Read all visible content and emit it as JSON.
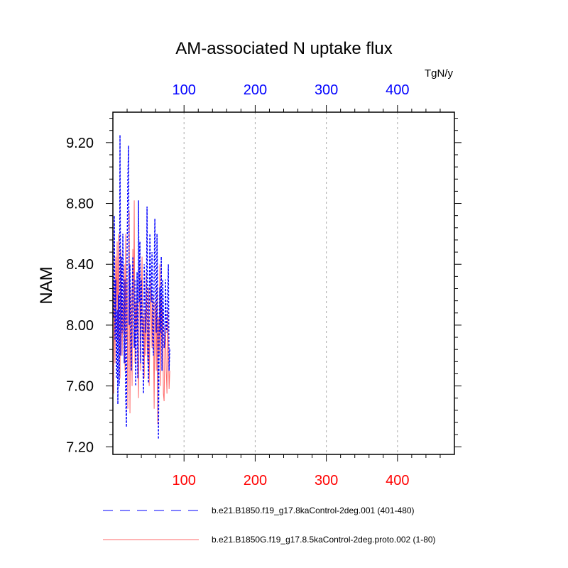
{
  "chart_data": {
    "type": "line",
    "title": "AM-associated N uptake flux",
    "ylabel": "NAM",
    "units": "TgN/y",
    "xlim": [
      0,
      480
    ],
    "ylim": [
      7.15,
      9.4
    ],
    "yticks": [
      7.2,
      7.6,
      8.0,
      8.4,
      8.8,
      9.2
    ],
    "ytick_labels": [
      "7.20",
      "7.60",
      "8.00",
      "8.40",
      "8.80",
      "9.20"
    ],
    "xticks_top": [
      100,
      200,
      300,
      400
    ],
    "xtick_labels_top": [
      "100",
      "200",
      "300",
      "400"
    ],
    "xticks_bottom": [
      100,
      200,
      300,
      400
    ],
    "xtick_labels_bottom": [
      "100",
      "200",
      "300",
      "400"
    ],
    "top_axis_color": "#0000ff",
    "bottom_axis_color": "#ff0000",
    "grid": "vertical dashed at x ticks",
    "legend_position": "bottom",
    "series": [
      {
        "name": "b.e21.B1850.f19_g17.8kaControl-2deg.001 (401-480)",
        "color": "#0000ff",
        "style": "dashed",
        "x": [
          1,
          2,
          3,
          4,
          5,
          6,
          7,
          8,
          9,
          10,
          11,
          12,
          13,
          14,
          15,
          16,
          17,
          18,
          19,
          20,
          21,
          22,
          23,
          24,
          25,
          26,
          27,
          28,
          29,
          30,
          31,
          32,
          33,
          34,
          35,
          36,
          37,
          38,
          39,
          40,
          41,
          42,
          43,
          44,
          45,
          46,
          47,
          48,
          49,
          50,
          51,
          52,
          53,
          54,
          55,
          56,
          57,
          58,
          59,
          60,
          61,
          62,
          63,
          64,
          65,
          66,
          67,
          68,
          69,
          70,
          71,
          72,
          73,
          74,
          75,
          76,
          77,
          78,
          79,
          80
        ],
        "values": [
          8.05,
          8.72,
          7.9,
          8.3,
          7.65,
          8.1,
          7.48,
          8.2,
          7.6,
          9.25,
          7.8,
          8.45,
          7.95,
          8.6,
          8.1,
          7.75,
          8.3,
          7.55,
          7.33,
          8.5,
          8.95,
          9.18,
          8.0,
          8.4,
          7.9,
          7.7,
          8.2,
          8.45,
          8.1,
          7.85,
          8.3,
          7.6,
          7.95,
          8.35,
          7.65,
          8.82,
          8.15,
          8.55,
          7.75,
          8.3,
          8.05,
          7.8,
          7.55,
          8.4,
          8.2,
          7.95,
          8.1,
          8.78,
          7.85,
          7.62,
          8.05,
          8.6,
          8.3,
          8.15,
          8.48,
          7.9,
          7.8,
          8.35,
          8.7,
          8.2,
          7.95,
          8.6,
          8.1,
          7.25,
          7.9,
          8.25,
          7.95,
          8.45,
          7.7,
          8.3,
          8.1,
          7.85,
          7.9,
          8.3,
          8.0,
          7.95,
          8.2,
          8.4,
          7.7,
          7.85
        ]
      },
      {
        "name": "b.e21.B1850G.f19_g17.8.5kaControl-2deg.proto.002 (1-80)",
        "color": "#ff6a6a",
        "style": "solid",
        "x": [
          1,
          2,
          3,
          4,
          5,
          6,
          7,
          8,
          9,
          10,
          11,
          12,
          13,
          14,
          15,
          16,
          17,
          18,
          19,
          20,
          21,
          22,
          23,
          24,
          25,
          26,
          27,
          28,
          29,
          30,
          31,
          32,
          33,
          34,
          35,
          36,
          37,
          38,
          39,
          40,
          41,
          42,
          43,
          44,
          45,
          46,
          47,
          48,
          49,
          50,
          51,
          52,
          53,
          54,
          55,
          56,
          57,
          58,
          59,
          60,
          61,
          62,
          63,
          64,
          65,
          66,
          67,
          68,
          69,
          70,
          71,
          72,
          73,
          74,
          75,
          76,
          77,
          78,
          79,
          80
        ],
        "values": [
          7.55,
          8.3,
          7.75,
          8.45,
          8.1,
          8.55,
          7.9,
          8.6,
          8.0,
          7.65,
          8.5,
          8.2,
          7.8,
          8.15,
          7.95,
          8.4,
          7.7,
          8.6,
          7.9,
          8.3,
          7.45,
          8.0,
          8.75,
          7.42,
          8.25,
          8.0,
          7.6,
          8.5,
          8.1,
          8.82,
          7.75,
          8.15,
          7.95,
          8.3,
          7.85,
          7.52,
          8.05,
          8.4,
          7.7,
          8.2,
          8.45,
          7.9,
          8.05,
          7.65,
          8.1,
          7.8,
          8.35,
          7.9,
          7.75,
          8.25,
          7.6,
          7.95,
          8.3,
          8.1,
          7.85,
          8.2,
          7.9,
          7.45,
          8.15,
          7.95,
          7.7,
          8.25,
          7.35,
          8.05,
          7.8,
          8.4,
          7.6,
          8.2,
          7.9,
          8.1,
          7.55,
          7.5,
          7.85,
          8.0,
          7.7,
          7.55,
          8.1,
          7.85,
          7.58,
          7.7
        ]
      }
    ]
  }
}
